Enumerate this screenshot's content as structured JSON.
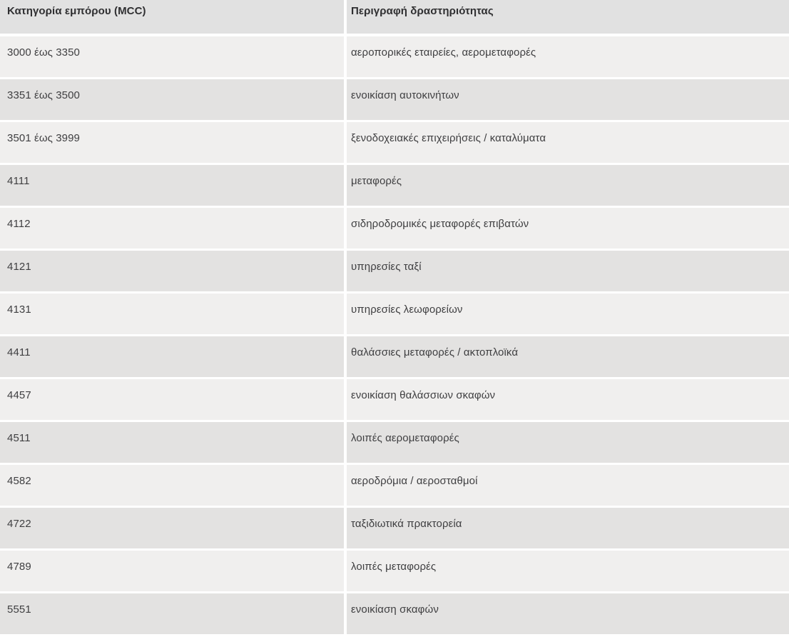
{
  "table": {
    "columns": [
      {
        "key": "mcc",
        "label": "Κατηγορία εμπόρου (MCC)"
      },
      {
        "key": "description",
        "label": "Περιγραφή δραστηριότητας"
      }
    ],
    "rows": [
      {
        "mcc": "3000 έως 3350",
        "description": "αεροπορικές εταιρείες, αερομεταφορές"
      },
      {
        "mcc": "3351 έως 3500",
        "description": "ενοικίαση αυτοκινήτων"
      },
      {
        "mcc": "3501 έως 3999",
        "description": "ξενοδοχειακές επιχειρήσεις / καταλύματα"
      },
      {
        "mcc": "4111",
        "description": "μεταφορές"
      },
      {
        "mcc": "4112",
        "description": "σιδηροδρομικές μεταφορές επιβατών"
      },
      {
        "mcc": "4121",
        "description": "υπηρεσίες ταξί"
      },
      {
        "mcc": "4131",
        "description": "υπηρεσίες λεωφορείων"
      },
      {
        "mcc": "4411",
        "description": "θαλάσσιες μεταφορές / ακτοπλοϊκά"
      },
      {
        "mcc": "4457",
        "description": "ενοικίαση θαλάσσιων σκαφών"
      },
      {
        "mcc": "4511",
        "description": "λοιπές αερομεταφορές"
      },
      {
        "mcc": "4582",
        "description": "αεροδρόμια / αεροσταθμοί"
      },
      {
        "mcc": "4722",
        "description": "ταξιδιωτικά πρακτορεία"
      },
      {
        "mcc": "4789",
        "description": "λοιπές μεταφορές"
      },
      {
        "mcc": "5551",
        "description": "ενοικίαση σκαφών"
      }
    ]
  },
  "colors": {
    "header_bg": "#e1e1e1",
    "row_light": "#f0efee",
    "row_dark": "#e3e2e1",
    "gutter": "#ffffff",
    "header_text": "#2f2f31",
    "cell_text": "#3f3f41"
  }
}
